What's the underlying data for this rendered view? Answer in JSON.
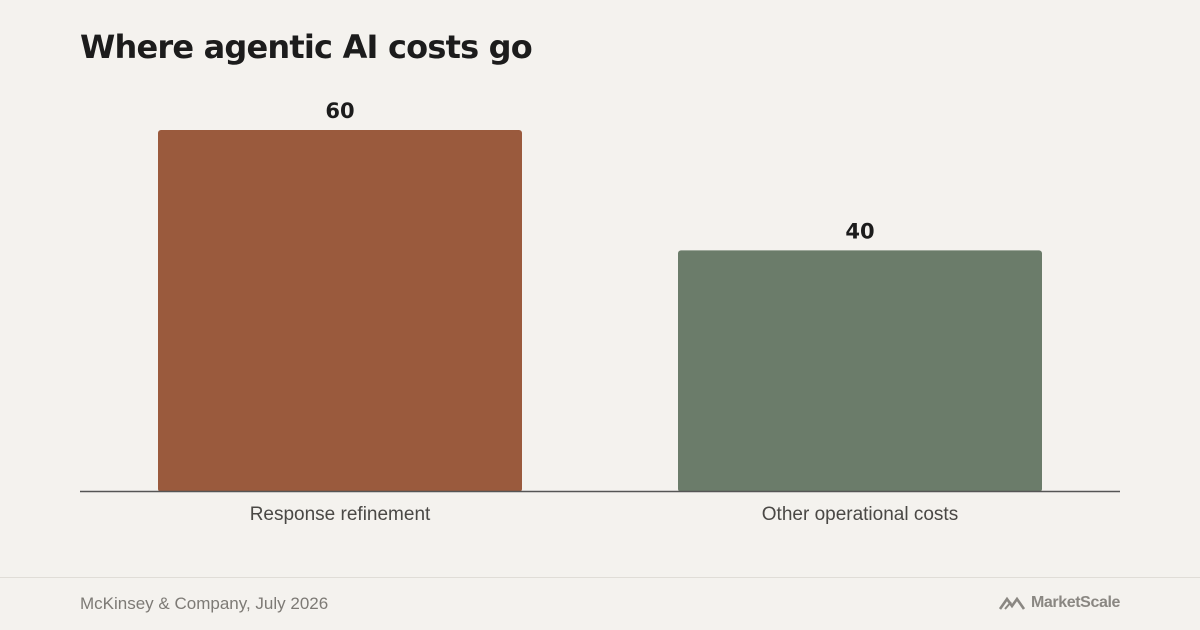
{
  "chart_data": {
    "type": "bar",
    "title": "Where agentic AI costs go",
    "categories": [
      "Response refinement",
      "Other operational costs"
    ],
    "values": [
      60,
      40
    ],
    "colors": [
      "#9a5a3d",
      "#6b7c6a"
    ],
    "xlabel": "",
    "ylabel": "",
    "ylim": [
      0,
      60
    ],
    "grid": false,
    "legend": "none"
  },
  "footer": {
    "source": "McKinsey & Company, July 2026",
    "brand": "MarketScale",
    "brand_icon": "marketscale-logo-icon"
  }
}
